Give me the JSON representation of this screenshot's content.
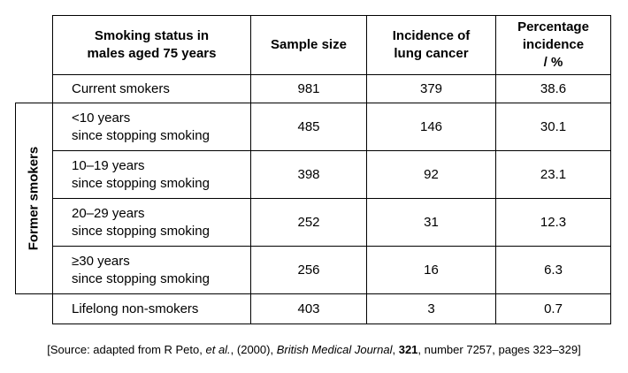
{
  "headers": {
    "status": "Smoking status in males aged 75 years",
    "sample": "Sample size",
    "incidence": "Incidence of lung cancer",
    "percentage": "Percentage incidence / %"
  },
  "header_lines": {
    "status": [
      "Smoking status in",
      "males aged 75 years"
    ],
    "incidence": [
      "Incidence of",
      "lung cancer"
    ],
    "percentage": [
      "Percentage",
      "incidence",
      "/ %"
    ]
  },
  "group_label": "Former smokers",
  "rows": [
    {
      "label1": "Current smokers",
      "label2": "",
      "sample": "981",
      "incidence": "379",
      "percentage": "38.6"
    },
    {
      "label1": "<10 years",
      "label2": "since stopping smoking",
      "sample": "485",
      "incidence": "146",
      "percentage": "30.1"
    },
    {
      "label1": "10–19 years",
      "label2": "since stopping smoking",
      "sample": "398",
      "incidence": "92",
      "percentage": "23.1"
    },
    {
      "label1": "20–29 years",
      "label2": "since stopping smoking",
      "sample": "252",
      "incidence": "31",
      "percentage": "12.3"
    },
    {
      "label1": "≥30 years",
      "label2": "since stopping smoking",
      "sample": "256",
      "incidence": "16",
      "percentage": "6.3"
    },
    {
      "label1": "Lifelong non-smokers",
      "label2": "",
      "sample": "403",
      "incidence": "3",
      "percentage": "0.7"
    }
  ],
  "source": {
    "prefix": "[Source: adapted from R Peto, ",
    "etal": "et al.",
    "middle": ", (2000), ",
    "journal": "British Medical Journal",
    "sep": ", ",
    "volume": "321",
    "suffix": ", number 7257, pages 323–329]"
  }
}
